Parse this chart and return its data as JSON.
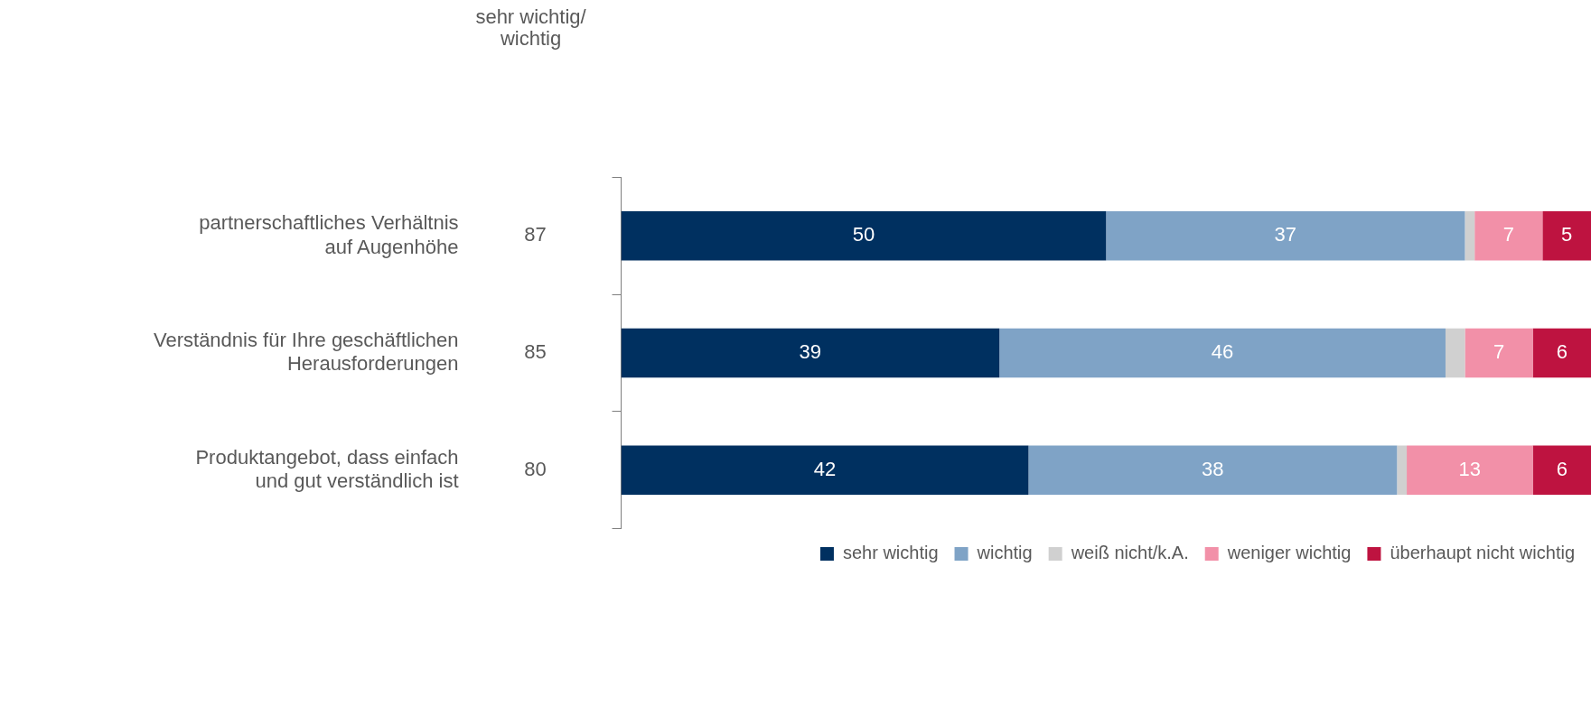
{
  "chart_data": {
    "type": "bar",
    "orientation": "horizontal",
    "stacked": true,
    "categories": [
      "partnerschaftliches Verhältnis\nauf Augenhöhe",
      "Verständnis für Ihre geschäftlichen\nHerausforderungen",
      "Produktangebot, dass einfach\nund gut verständlich ist"
    ],
    "series": [
      {
        "name": "sehr wichtig",
        "color": "#003060",
        "values": [
          50,
          39,
          42
        ],
        "value_labels": [
          "50",
          "39",
          "42"
        ]
      },
      {
        "name": "wichtig",
        "color": "#7fa3c6",
        "values": [
          37,
          46,
          38
        ],
        "value_labels": [
          "37",
          "46",
          "38"
        ]
      },
      {
        "name": "weiß nicht/k.A.",
        "color": "#d0d0d0",
        "values": [
          1,
          2,
          1
        ],
        "value_labels": [
          null,
          null,
          null
        ]
      },
      {
        "name": "weniger wichtig",
        "color": "#f290a8",
        "values": [
          7,
          7,
          13
        ],
        "value_labels": [
          "7",
          "7",
          "13"
        ]
      },
      {
        "name": "überhaupt nicht wichtig",
        "color": "#be1340",
        "values": [
          5,
          6,
          6
        ],
        "value_labels": [
          "5",
          "6",
          "6"
        ]
      }
    ],
    "xlim": [
      0,
      100
    ],
    "tick_labels": "y",
    "legend": "bottom right",
    "annotations": [
      "sehr wichtig/\nwichtig",
      "87",
      "85",
      "80"
    ]
  }
}
